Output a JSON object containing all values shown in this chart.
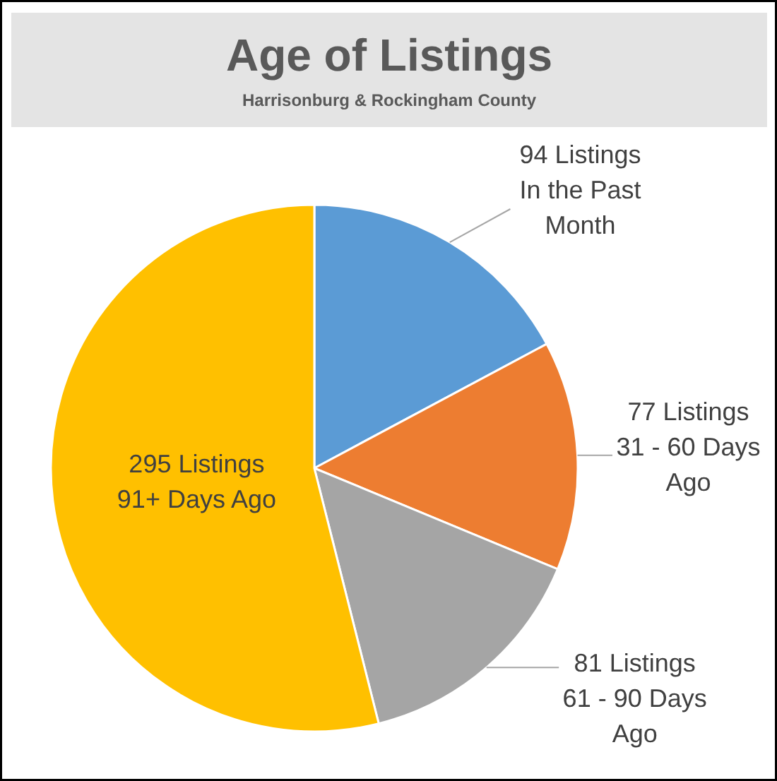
{
  "chart_data": {
    "type": "pie",
    "title": "Age of Listings",
    "subtitle": "Harrisonburg & Rockingham County",
    "categories": [
      "In the Past Month",
      "31 - 60 Days Ago",
      "61 - 90 Days Ago",
      "91+ Days Ago"
    ],
    "values": [
      94,
      77,
      81,
      295
    ],
    "colors": [
      "#5b9bd5",
      "#ed7d31",
      "#a5a5a5",
      "#ffc000"
    ],
    "value_labels": [
      "94 Listings",
      "77 Listings",
      "81 Listings",
      "295 Listings"
    ]
  }
}
